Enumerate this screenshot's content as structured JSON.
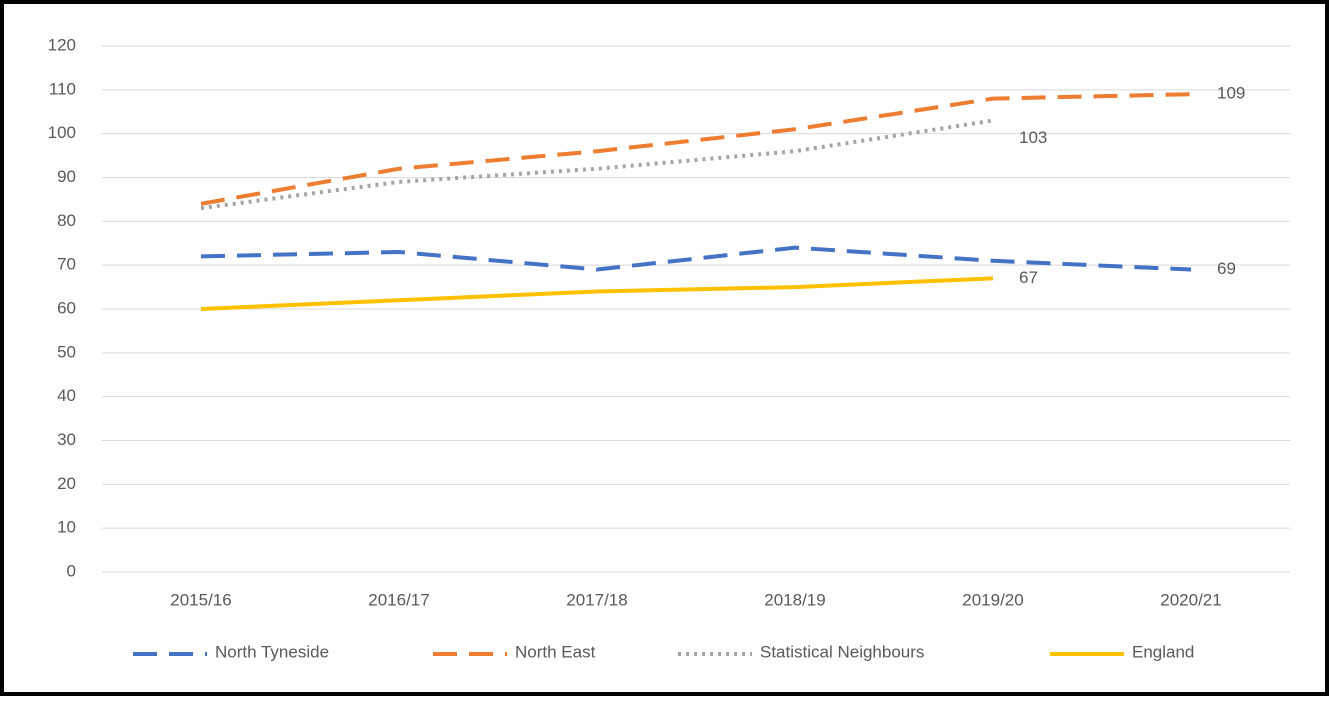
{
  "chart_data": {
    "type": "line",
    "categories": [
      "2015/16",
      "2016/17",
      "2017/18",
      "2018/19",
      "2019/20",
      "2020/21"
    ],
    "series": [
      {
        "name": "North Tyneside",
        "color": "#4472c4",
        "dash": "dash",
        "values": [
          72,
          73,
          69,
          74,
          71,
          69
        ]
      },
      {
        "name": "North East",
        "color": "#ed7d31",
        "dash": "dash",
        "values": [
          84,
          92,
          96,
          101,
          108,
          109
        ]
      },
      {
        "name": "Statistical Neighbours",
        "color": "#a5a5a5",
        "dash": "dot",
        "values": [
          83,
          89,
          92,
          96,
          103,
          null
        ]
      },
      {
        "name": "England",
        "color": "#ffc000",
        "dash": "solid",
        "values": [
          60,
          62,
          64,
          65,
          67,
          null
        ]
      }
    ],
    "ylim": [
      0,
      120
    ],
    "yticks": [
      0,
      10,
      20,
      30,
      40,
      50,
      60,
      70,
      80,
      90,
      100,
      110,
      120
    ],
    "grid": true,
    "data_labels": "last",
    "legend": "bottom"
  }
}
